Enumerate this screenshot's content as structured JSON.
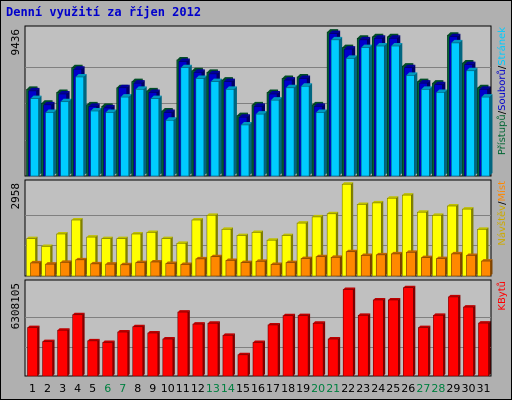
{
  "chart_data": {
    "type": "bar",
    "title": "Denní využití za říjen 2012",
    "x": [
      "1",
      "2",
      "3",
      "4",
      "5",
      "6",
      "7",
      "8",
      "9",
      "10",
      "11",
      "12",
      "13",
      "14",
      "15",
      "16",
      "17",
      "18",
      "19",
      "20",
      "21",
      "22",
      "23",
      "24",
      "25",
      "26",
      "27",
      "28",
      "29",
      "30",
      "31"
    ],
    "weekend_days": [
      "6",
      "7",
      "13",
      "14",
      "20",
      "21",
      "27",
      "28"
    ],
    "colors": {
      "frame": "#b0b0b0",
      "plot_bg": "#c0c0c0",
      "title": "#0000cc",
      "weekday_label": "#000000",
      "weekend_label": "#008040",
      "hits": "#006633",
      "files": "#0000cc",
      "pages": "#00ccff",
      "visits": "#ffff00",
      "sites": "#ff8800",
      "kbytes": "#ff0000"
    },
    "panels": [
      {
        "id": "hits-files-pages",
        "max_label": "9436",
        "ymax": 9436,
        "legend": [
          {
            "text": "Přístupů",
            "color": "#006633"
          },
          {
            "text": "/",
            "color": "#000000"
          },
          {
            "text": "Souborů",
            "color": "#0000cc"
          },
          {
            "text": "/",
            "color": "#000000"
          },
          {
            "text": "Stránek",
            "color": "#00ccff"
          }
        ],
        "series": [
          {
            "key": "hits",
            "values": [
              5600,
              4700,
              5400,
              7000,
              4600,
              4500,
              5700,
              6100,
              5500,
              4200,
              7500,
              6800,
              6700,
              6200,
              3900,
              4600,
              5400,
              6300,
              6400,
              4600,
              9300,
              8300,
              8900,
              9000,
              9000,
              7100,
              6100,
              6000,
              9100,
              7300,
              5700
            ]
          },
          {
            "key": "files",
            "values": [
              5500,
              4600,
              5300,
              6900,
              4500,
              4400,
              5700,
              6000,
              5400,
              4100,
              7400,
              6700,
              6600,
              6100,
              3800,
              4500,
              5300,
              6200,
              6300,
              4500,
              9200,
              8200,
              8800,
              8900,
              8900,
              7000,
              6000,
              5900,
              9000,
              7200,
              5600
            ]
          },
          {
            "key": "pages",
            "values": [
              5000,
              4100,
              4800,
              6400,
              4200,
              4100,
              5100,
              5600,
              5000,
              3600,
              7000,
              6300,
              6100,
              5600,
              3300,
              4000,
              4900,
              5700,
              5800,
              4100,
              8800,
              7600,
              8300,
              8400,
              8400,
              6500,
              5600,
              5400,
              8600,
              6800,
              5100
            ]
          }
        ]
      },
      {
        "id": "visits-sites",
        "max_label": "2958",
        "ymax": 2958,
        "legend": [
          {
            "text": "Návštěv",
            "color": "#ccaa00"
          },
          {
            "text": "/",
            "color": "#000000"
          },
          {
            "text": "Míst",
            "color": "#ff8800"
          }
        ],
        "series": [
          {
            "key": "visits",
            "values": [
              1200,
              950,
              1350,
              1800,
              1250,
              1200,
              1200,
              1350,
              1400,
              1200,
              1050,
              1800,
              1950,
              1500,
              1300,
              1400,
              1150,
              1300,
              1700,
              1900,
              2000,
              2950,
              2300,
              2350,
              2500,
              2600,
              2050,
              1950,
              2250,
              2150,
              1500
            ]
          },
          {
            "key": "sites",
            "values": [
              420,
              380,
              440,
              520,
              390,
              380,
              360,
              430,
              450,
              400,
              370,
              550,
              620,
              500,
              430,
              470,
              370,
              430,
              560,
              620,
              600,
              780,
              660,
              680,
              710,
              760,
              590,
              560,
              710,
              660,
              480
            ]
          }
        ]
      },
      {
        "id": "kbytes",
        "max_label": "6308105",
        "ymax": 6308105,
        "legend": [
          {
            "text": "KBytů",
            "color": "#ff0000"
          }
        ],
        "series": [
          {
            "key": "kbytes",
            "values": [
              3470000,
              2460000,
              3280000,
              4390000,
              2520000,
              2400000,
              3150000,
              3530000,
              3080000,
              2650000,
              4580000,
              3720000,
              3780000,
              2910000,
              1520000,
              2400000,
              3660000,
              4320000,
              4330000,
              3780000,
              2650000,
              6200000,
              4350000,
              5450000,
              5450000,
              6330000,
              3470000,
              4350000,
              5670000,
              4940000,
              3790000
            ]
          }
        ]
      }
    ]
  }
}
